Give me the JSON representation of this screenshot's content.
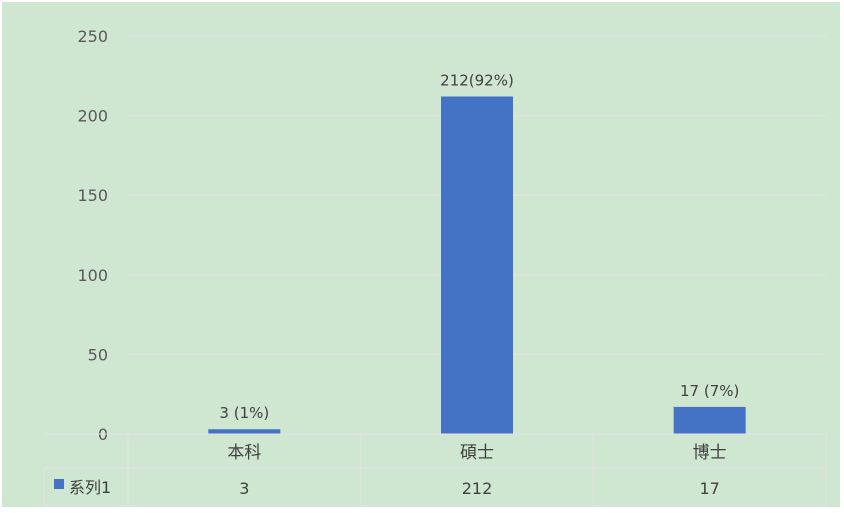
{
  "chart_data": {
    "type": "bar",
    "categories": [
      "本科",
      "碩士",
      "博士"
    ],
    "series": [
      {
        "name": "系列1",
        "values": [
          3,
          212,
          17
        ]
      }
    ],
    "data_labels": [
      "3 (1%)",
      "212(92%)",
      "17 (7%)"
    ],
    "ylim": [
      0,
      250
    ],
    "yticks": [
      "0",
      "50",
      "100",
      "150",
      "200",
      "250"
    ],
    "grid": true,
    "legend": "data-table",
    "colors": {
      "background": "#cfe6d1",
      "bar": "#4472c4",
      "gridline": "#e3e3e3",
      "table_border": "#e3e3e3"
    }
  }
}
